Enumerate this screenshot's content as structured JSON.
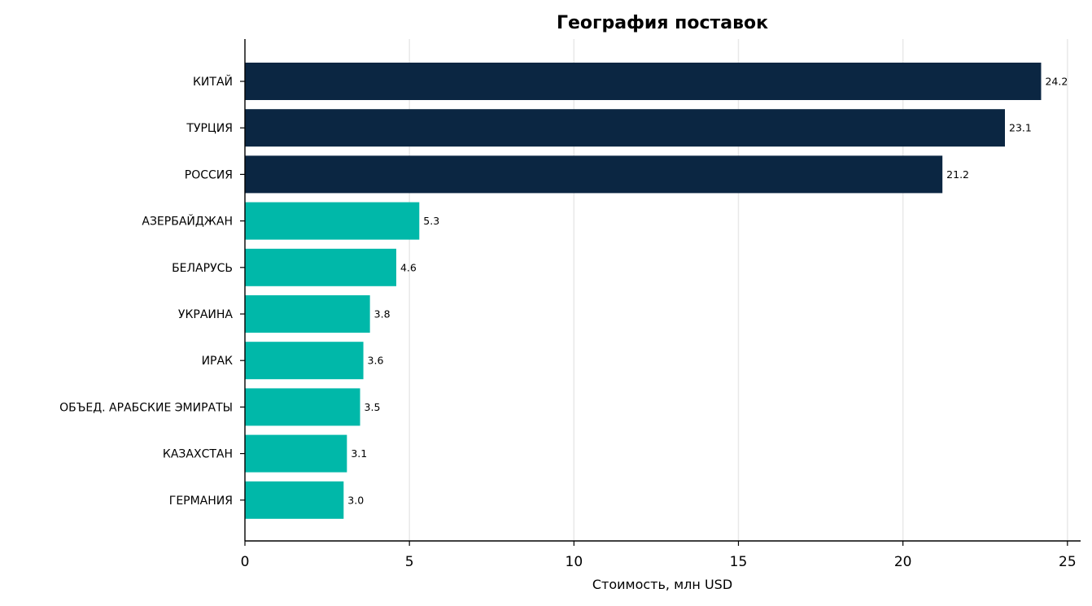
{
  "chart_data": {
    "type": "bar",
    "orientation": "horizontal",
    "title": "География поставок",
    "xlabel": "Стоимость, млн USD",
    "ylabel": "",
    "xlim": [
      0,
      25.4
    ],
    "xticks": [
      0,
      5,
      10,
      15,
      20,
      25
    ],
    "grid": "vertical",
    "categories": [
      "КИТАЙ",
      "ТУРЦИЯ",
      "РОССИЯ",
      "АЗЕРБАЙДЖАН",
      "БЕЛАРУСЬ",
      "УКРАИНА",
      "ИРАК",
      "ОБЪЕД. АРАБСКИЕ ЭМИРАТЫ",
      "КАЗАХСТАН",
      "ГЕРМАНИЯ"
    ],
    "values": [
      24.2,
      23.1,
      21.2,
      5.3,
      4.6,
      3.8,
      3.6,
      3.5,
      3.1,
      3.0
    ],
    "value_labels": [
      "24.2",
      "23.1",
      "21.2",
      "5.3",
      "4.6",
      "3.8",
      "3.6",
      "3.5",
      "3.1",
      "3.0"
    ],
    "colors": {
      "top3": "#0b2642",
      "others": "#00b8a9",
      "grid": "#e8e8e8",
      "axis": "#000000"
    },
    "highlight_count": 3
  }
}
